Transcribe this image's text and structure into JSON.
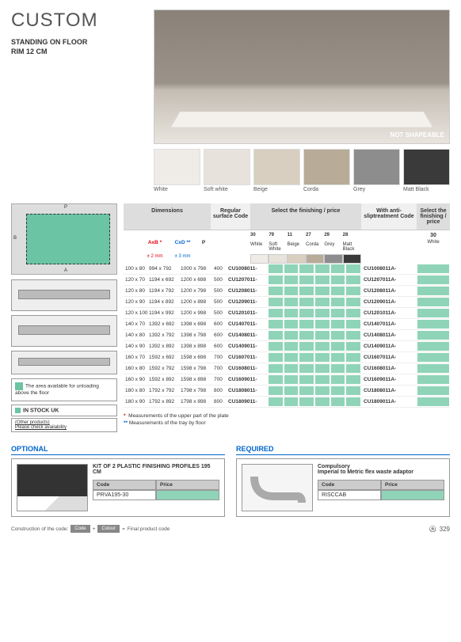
{
  "title": "CUSTOM",
  "subtitle1": "STANDING ON FLOOR",
  "subtitle2": "RIM 12 CM",
  "hero_badge": "NOT SHAPEABLE",
  "swatches": [
    {
      "label": "White",
      "color": "#efece7"
    },
    {
      "label": "Soft white",
      "color": "#e7e3dc"
    },
    {
      "label": "Beige",
      "color": "#d8cfc0"
    },
    {
      "label": "Corda",
      "color": "#b8ac98"
    },
    {
      "label": "Grey",
      "color": "#8d8d8d"
    },
    {
      "label": "Matt Black",
      "color": "#3a3a3a"
    }
  ],
  "headers": {
    "dimensions": "Dimensions",
    "regular": "Regular surface Code",
    "finishing": "Select the finishing / price",
    "anti": "With anti-sliptreatment Code",
    "select2": "Select the finishing / price"
  },
  "dim_legend": {
    "ab": "AxB *",
    "ab_tol": "± 2 mm",
    "cd": "CxD **",
    "cd_tol": "± 3 mm",
    "p": "P"
  },
  "fin_codes": [
    {
      "n": "30",
      "lbl": "White",
      "c": "#efece7"
    },
    {
      "n": "79",
      "lbl": "Soft White",
      "c": "#e7e3dc"
    },
    {
      "n": "11",
      "lbl": "Beige",
      "c": "#d8cfc0"
    },
    {
      "n": "27",
      "lbl": "Corda",
      "c": "#b8ac98"
    },
    {
      "n": "29",
      "lbl": "Grey",
      "c": "#8d8d8d"
    },
    {
      "n": "28",
      "lbl": "Matt Black",
      "c": "#3a3a3a"
    }
  ],
  "fin2": {
    "n": "30",
    "lbl": "White"
  },
  "rows": [
    {
      "d": "100 x 80",
      "ab": "994 x 792",
      "cd": "1000 x 798",
      "p": "400",
      "code": "CU1008011-",
      "anti": "CU1008011A-"
    },
    {
      "d": "120 x 70",
      "ab": "1194 x 692",
      "cd": "1200 x 698",
      "p": "500",
      "code": "CU1207011-",
      "anti": "CU1207011A-"
    },
    {
      "d": "120 x 80",
      "ab": "1194 x 792",
      "cd": "1200 x 798",
      "p": "500",
      "code": "CU1208011-",
      "anti": "CU1208011A-"
    },
    {
      "d": "120 x 90",
      "ab": "1194 x 892",
      "cd": "1200 x 898",
      "p": "500",
      "code": "CU1209011-",
      "anti": "CU1209011A-"
    },
    {
      "d": "120 x 100",
      "ab": "1194 x 992",
      "cd": "1200 x 998",
      "p": "500",
      "code": "CU1201011-",
      "anti": "CU1201011A-"
    },
    {
      "d": "140 x 70",
      "ab": "1392 x 692",
      "cd": "1398 x 698",
      "p": "600",
      "code": "CU1407011-",
      "anti": "CU1407011A-"
    },
    {
      "d": "140 x 80",
      "ab": "1392 x 792",
      "cd": "1398 x 798",
      "p": "600",
      "code": "CU1408011-",
      "anti": "CU1408011A-"
    },
    {
      "d": "140 x 90",
      "ab": "1392 x 892",
      "cd": "1398 x 898",
      "p": "600",
      "code": "CU1409011-",
      "anti": "CU1409011A-"
    },
    {
      "d": "160 x 70",
      "ab": "1592 x 692",
      "cd": "1598 x 698",
      "p": "700",
      "code": "CU1607011-",
      "anti": "CU1607011A-"
    },
    {
      "d": "160 x 80",
      "ab": "1592 x 792",
      "cd": "1598 x 798",
      "p": "700",
      "code": "CU1608011-",
      "anti": "CU1608011A-"
    },
    {
      "d": "160 x 90",
      "ab": "1592 x 892",
      "cd": "1598 x 898",
      "p": "700",
      "code": "CU1609011-",
      "anti": "CU1609011A-"
    },
    {
      "d": "180 x 80",
      "ab": "1792 x 792",
      "cd": "1798 x 798",
      "p": "800",
      "code": "CU1808011-",
      "anti": "CU1808011A-"
    },
    {
      "d": "180 x 90",
      "ab": "1792 x 892",
      "cd": "1798 x 898",
      "p": "800",
      "code": "CU1809011-",
      "anti": "CU1809011A-"
    }
  ],
  "note1": "Measurements of the upper part of the plate",
  "note2": "Measurements of the tray by floor",
  "left": {
    "unload": "The area available for unloading above the floor",
    "stock": "IN STOCK UK",
    "other1": "(Other products)",
    "other2": "Please check availability"
  },
  "optional": {
    "title": "OPTIONAL",
    "product": "KIT OF 2 PLASTIC FINISHING PROFILES 195 CM",
    "code_h": "Code",
    "price_h": "Price",
    "code": "PRVA195-30"
  },
  "required": {
    "title": "REQUIRED",
    "line1": "Compulsory",
    "line2": "Imperial to Metric flex waste adaptor",
    "code_h": "Code",
    "price_h": "Price",
    "code": "RISCCAB"
  },
  "footer": {
    "t1": "Construction of the code:",
    "chip1": "Code",
    "plus": "+",
    "chip2": "Colour",
    "eq": "=",
    "t2": "Final product code",
    "page": "329"
  }
}
